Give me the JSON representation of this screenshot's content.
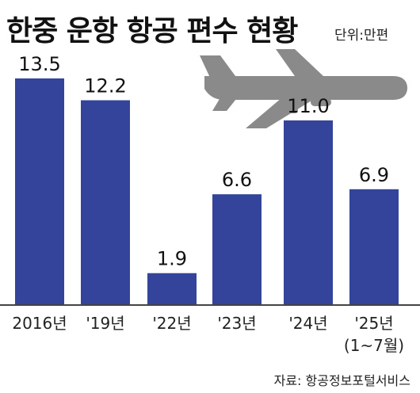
{
  "header": {
    "title": "한중 운항 항공 편수 현황",
    "unit": "단위:만편"
  },
  "source": "자료: 항공정보포털서비스",
  "colors": {
    "bar": "#33449a",
    "baseline": "#444444",
    "plane": "#8a8a8a"
  },
  "icons": {
    "plane": "airplane-icon"
  },
  "chart_data": {
    "type": "bar",
    "title": "한중 운항 항공 편수 현황",
    "unit": "단위:만편",
    "categories": [
      "2016년",
      "'19년",
      "'22년",
      "'23년",
      "'24년",
      "'25년\n(1~7월)"
    ],
    "category_lines": [
      [
        "2016년"
      ],
      [
        "'19년"
      ],
      [
        "'22년"
      ],
      [
        "'23년"
      ],
      [
        "'24년"
      ],
      [
        "'25년",
        "(1~7월)"
      ]
    ],
    "values": [
      13.5,
      12.2,
      1.9,
      6.6,
      11.0,
      6.9
    ],
    "value_labels": [
      "13.5",
      "12.2",
      "1.9",
      "6.6",
      "11.0",
      "6.9"
    ],
    "ylim": [
      0,
      13.5
    ],
    "grid": false,
    "legend": "none"
  }
}
